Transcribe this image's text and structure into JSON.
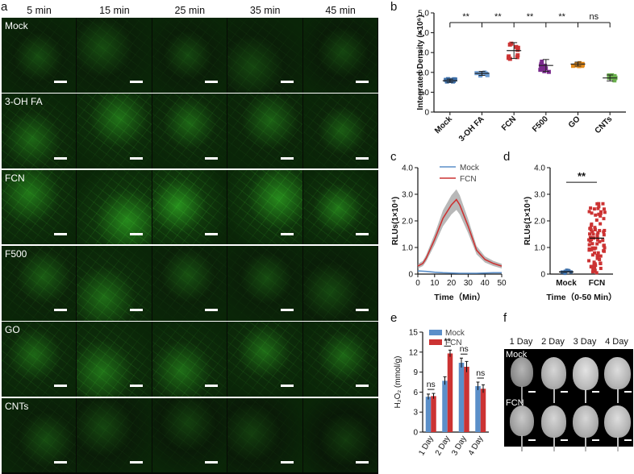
{
  "panel_letters": {
    "a": "a",
    "b": "b",
    "c": "c",
    "d": "d",
    "e": "e",
    "f": "f"
  },
  "panel_a": {
    "time_columns": [
      "5 min",
      "15 min",
      "25 min",
      "35 min",
      "45 min"
    ],
    "treatments": [
      "Mock",
      "3-OH FA",
      "FCN",
      "F500",
      "GO",
      "CNTs"
    ],
    "signal_level": [
      [
        0.3,
        0.3,
        0.28,
        0.26,
        0.25
      ],
      [
        0.55,
        0.65,
        0.55,
        0.5,
        0.45
      ],
      [
        0.7,
        0.85,
        0.9,
        0.85,
        0.7
      ],
      [
        0.45,
        0.6,
        0.35,
        0.3,
        0.28
      ],
      [
        0.55,
        0.65,
        0.6,
        0.6,
        0.55
      ],
      [
        0.3,
        0.25,
        0.2,
        0.18,
        0.15
      ]
    ],
    "colors": {
      "signal": "#39d62a",
      "background": "#060a05"
    }
  },
  "chart_data": [
    {
      "panel": "b",
      "type": "scatter",
      "ylabel": "Integrated Density (×10⁶)",
      "ylim": [
        0,
        5
      ],
      "yticks": [
        "0",
        "1.0",
        "2.0",
        "3.0",
        "4.0",
        "5.0"
      ],
      "categories": [
        "Mock",
        "3-OH FA",
        "FCN",
        "F500",
        "GO",
        "CNTs"
      ],
      "means": [
        1.58,
        1.95,
        3.1,
        2.35,
        2.42,
        1.72
      ],
      "sd": [
        0.08,
        0.1,
        0.4,
        0.3,
        0.1,
        0.15
      ],
      "colors": [
        "#3d6fa8",
        "#6a9bd2",
        "#cc3333",
        "#7a2a8c",
        "#e38a1a",
        "#6ab04c"
      ],
      "significance": [
        "**",
        "**",
        "**",
        "**",
        "ns"
      ]
    },
    {
      "panel": "c",
      "type": "line",
      "xlabel": "Time（Min）",
      "ylabel": "RLUs(1×10⁴)",
      "xlim": [
        0,
        50
      ],
      "ylim": [
        0,
        4
      ],
      "xticks": [
        "0",
        "10",
        "20",
        "30",
        "40",
        "50"
      ],
      "yticks": [
        "0",
        "1.0",
        "2.0",
        "3.0",
        "4.0"
      ],
      "series": [
        {
          "name": "Mock",
          "color": "#5b8fc9",
          "x": [
            0,
            5,
            10,
            15,
            20,
            25,
            30,
            35,
            40,
            45,
            50
          ],
          "values": [
            0.12,
            0.1,
            0.07,
            0.05,
            0.04,
            0.03,
            0.03,
            0.03,
            0.04,
            0.05,
            0.05
          ]
        },
        {
          "name": "FCN",
          "color": "#cc3333",
          "x": [
            0,
            3,
            5,
            10,
            15,
            20,
            23,
            25,
            30,
            35,
            40,
            45,
            50
          ],
          "values": [
            0.3,
            0.4,
            0.6,
            1.3,
            2.1,
            2.6,
            2.8,
            2.6,
            1.8,
            0.9,
            0.55,
            0.4,
            0.3
          ]
        }
      ]
    },
    {
      "panel": "d",
      "type": "scatter",
      "xlabel": "Time（0-50 Min）",
      "ylabel": "RLUs(1×10⁴)",
      "ylim": [
        0,
        4
      ],
      "yticks": [
        "0",
        "1.0",
        "2.0",
        "3.0",
        "4.0"
      ],
      "categories": [
        "Mock",
        "FCN"
      ],
      "means": [
        0.08,
        1.35
      ],
      "ranges": [
        [
          0.02,
          0.15
        ],
        [
          0.05,
          2.75
        ]
      ],
      "colors": [
        "#3d6fa8",
        "#cc3333"
      ],
      "significance": "**"
    },
    {
      "panel": "e",
      "type": "bar",
      "ylabel": "H₂O₂ (mmol/g)",
      "ylim": [
        0,
        15
      ],
      "yticks": [
        "0",
        "3",
        "6",
        "9",
        "12",
        "15"
      ],
      "categories": [
        "1 Day",
        "2 Day",
        "3 Day",
        "4 Day"
      ],
      "series": [
        {
          "name": "Mock",
          "color": "#5b8fc9",
          "values": [
            5.3,
            7.7,
            10.4,
            6.9
          ],
          "err": [
            0.4,
            0.6,
            0.7,
            0.6
          ]
        },
        {
          "name": "FCN",
          "color": "#cc3333",
          "values": [
            5.4,
            11.8,
            9.8,
            6.5
          ],
          "err": [
            0.4,
            0.5,
            0.8,
            0.6
          ]
        }
      ],
      "significance": [
        "ns",
        "**",
        "ns",
        "ns"
      ]
    }
  ],
  "panel_f": {
    "days": [
      "1 Day",
      "2 Day",
      "3 Day",
      "4 Day"
    ],
    "rows": [
      "Mock",
      "FCN"
    ],
    "leaf_brightness": [
      [
        0.55,
        0.8,
        0.9,
        0.85
      ],
      [
        0.7,
        0.8,
        0.8,
        0.85
      ]
    ]
  }
}
